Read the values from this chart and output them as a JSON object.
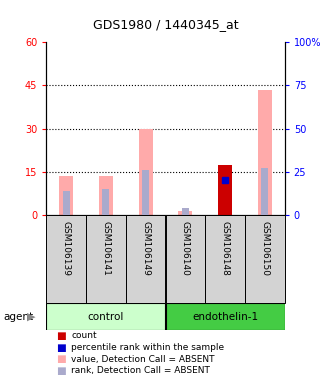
{
  "title": "GDS1980 / 1440345_at",
  "samples": [
    "GSM106139",
    "GSM106141",
    "GSM106149",
    "GSM106140",
    "GSM106148",
    "GSM106150"
  ],
  "ylim_left": [
    0,
    60
  ],
  "ylim_right": [
    0,
    100
  ],
  "yticks_left": [
    0,
    15,
    30,
    45,
    60
  ],
  "ytick_labels_left": [
    "0",
    "15",
    "30",
    "45",
    "60"
  ],
  "yticks_right": [
    0,
    25,
    50,
    75,
    100
  ],
  "ytick_labels_right": [
    "0",
    "25",
    "50",
    "75",
    "100%"
  ],
  "value_absent": [
    13.5,
    13.5,
    30.0,
    1.5,
    0.0,
    43.5
  ],
  "rank_absent": [
    14.0,
    15.0,
    26.0,
    4.0,
    0.0,
    27.5
  ],
  "count_present": [
    0.0,
    0.0,
    0.0,
    0.0,
    17.5,
    0.0
  ],
  "percentile_present": [
    0.0,
    0.0,
    0.0,
    0.0,
    20.0,
    0.0
  ],
  "color_value_absent": "#ffaaaa",
  "color_rank_absent": "#aaaacc",
  "color_count_present": "#cc0000",
  "color_percentile_present": "#0000cc",
  "hline_values": [
    15,
    30,
    45
  ],
  "ctrl_color_light": "#ccffcc",
  "endo_color_green": "#44cc44",
  "sample_box_color": "#d3d3d3"
}
